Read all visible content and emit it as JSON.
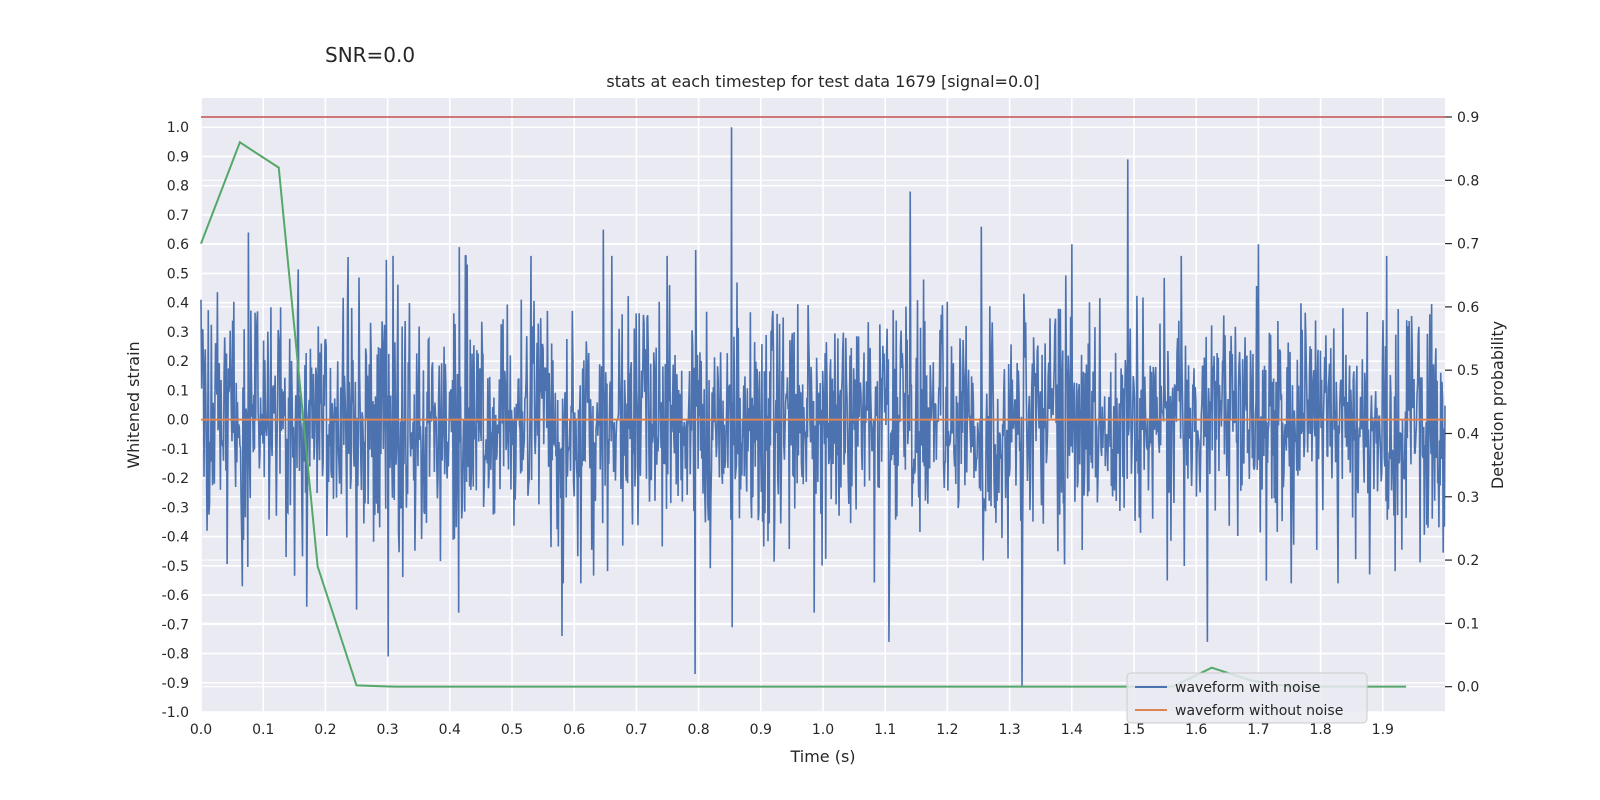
{
  "chart_data": {
    "type": "line",
    "suptitle": "SNR=0.0",
    "title": "stats at each timestep for test data 1679 [signal=0.0]",
    "xlabel": "Time (s)",
    "ylabel": "Whitened strain",
    "y2label": "Detection probability",
    "xlim": [
      0.0,
      2.0
    ],
    "ylim": [
      -1.0,
      1.1
    ],
    "y2lim": [
      -0.04,
      0.93
    ],
    "xticks": [
      "0.0",
      "0.1",
      "0.2",
      "0.3",
      "0.4",
      "0.5",
      "0.6",
      "0.7",
      "0.8",
      "0.9",
      "1.0",
      "1.1",
      "1.2",
      "1.3",
      "1.4",
      "1.5",
      "1.6",
      "1.7",
      "1.8",
      "1.9"
    ],
    "yticks": [
      "1.0",
      "0.9",
      "0.8",
      "0.7",
      "0.6",
      "0.5",
      "0.4",
      "0.3",
      "0.2",
      "0.1",
      "0.0",
      "-0.1",
      "-0.2",
      "-0.3",
      "-0.4",
      "-0.5",
      "-0.6",
      "-0.7",
      "-0.8",
      "-0.9",
      "-1.0"
    ],
    "y2ticks": [
      "0.9",
      "0.8",
      "0.7",
      "0.6",
      "0.5",
      "0.4",
      "0.3",
      "0.2",
      "0.1",
      "0.0"
    ],
    "grid": true,
    "legend_position": "bottom-right",
    "background": "#EAEAF2",
    "series": [
      {
        "name": "waveform with noise",
        "axis": "left",
        "color": "#4C72B0",
        "x_range": [
          0.0,
          2.0
        ],
        "samples": 2048,
        "rng_seed": 1679,
        "noise_std": 0.2,
        "peaks": [
          {
            "x": 0.0,
            "y": 0.41
          },
          {
            "x": 0.01,
            "y": -0.38
          },
          {
            "x": 0.076,
            "y": 0.64
          },
          {
            "x": 0.066,
            "y": -0.57
          },
          {
            "x": 0.17,
            "y": -0.64
          },
          {
            "x": 0.25,
            "y": -0.65
          },
          {
            "x": 0.301,
            "y": -0.81
          },
          {
            "x": 0.415,
            "y": 0.59
          },
          {
            "x": 0.414,
            "y": -0.66
          },
          {
            "x": 0.58,
            "y": -0.74
          },
          {
            "x": 0.647,
            "y": 0.65
          },
          {
            "x": 0.794,
            "y": -0.87
          },
          {
            "x": 0.795,
            "y": 0.58
          },
          {
            "x": 0.853,
            "y": 1.0
          },
          {
            "x": 0.854,
            "y": -0.71
          },
          {
            "x": 0.986,
            "y": -0.66
          },
          {
            "x": 1.106,
            "y": -0.76
          },
          {
            "x": 1.14,
            "y": 0.78
          },
          {
            "x": 1.32,
            "y": -0.91
          },
          {
            "x": 1.49,
            "y": 0.89
          },
          {
            "x": 1.618,
            "y": -0.76
          },
          {
            "x": 1.4,
            "y": 0.6
          },
          {
            "x": 1.7,
            "y": 0.6
          },
          {
            "x": 1.255,
            "y": 0.66
          }
        ]
      },
      {
        "name": "waveform without noise",
        "axis": "left",
        "color": "#DD8452",
        "x": [
          0.0,
          2.0
        ],
        "y": [
          0.0,
          0.0
        ]
      },
      {
        "name": "",
        "axis": "right",
        "color": "#55A868",
        "x": [
          0.0,
          0.0625,
          0.125,
          0.1875,
          0.25,
          0.3125,
          0.375,
          0.5,
          0.75,
          1.0,
          1.25,
          1.5,
          1.5625,
          1.625,
          1.6875,
          1.75,
          1.875,
          1.9375
        ],
        "y": [
          0.7,
          0.86,
          0.82,
          0.19,
          0.002,
          0.0,
          0.0,
          0.0,
          0.0,
          0.0,
          0.0,
          0.0,
          0.0,
          0.03,
          0.01,
          0.0,
          0.0,
          0.0
        ]
      },
      {
        "name": "",
        "axis": "right",
        "color": "#C44E52",
        "x": [
          0.0,
          2.0
        ],
        "y": [
          0.9,
          0.9
        ]
      }
    ]
  }
}
